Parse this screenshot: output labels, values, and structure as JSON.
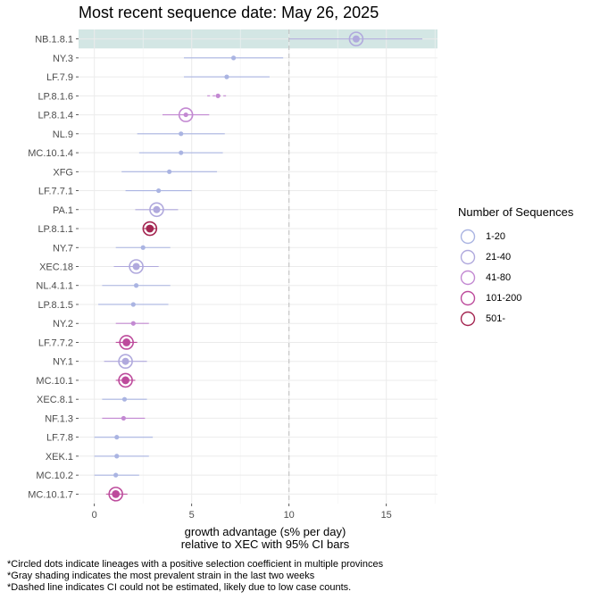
{
  "chart_data": {
    "type": "scatter",
    "title": "Most recent sequence date: May 26, 2025",
    "xlabel_line1": "growth advantage (s% per day)",
    "xlabel_line2": "relative to  XEC  with 95% CI bars",
    "xlim": [
      -1,
      17.6
    ],
    "xticks": [
      0,
      5,
      10,
      15
    ],
    "reference_line": 10,
    "grid": true,
    "legend_position": "right",
    "legend_title": "Number of Sequences",
    "legend": [
      {
        "label": "1-20",
        "color": "#aab4e2"
      },
      {
        "label": "21-40",
        "color": "#b0a9dd"
      },
      {
        "label": "41-80",
        "color": "#c389d2"
      },
      {
        "label": "101-200",
        "color": "#bd4b9c"
      },
      {
        "label": "501-",
        "color": "#a42651"
      }
    ],
    "colors": {
      "1-20": "#aab4e2",
      "21-40": "#b0a9dd",
      "41-80": "#c389d2",
      "101-200": "#bd4b9c",
      "501-": "#a42651"
    },
    "highlight": {
      "lineage": "NB.1.8.1",
      "color": "#d3e6e4",
      "xmin": 10
    },
    "points": [
      {
        "lineage": "NB.1.8.1",
        "x": 13.45,
        "lo": 10.0,
        "hi": 16.85,
        "group": "21-40",
        "circled": true,
        "dashed": false
      },
      {
        "lineage": "NY.3",
        "x": 7.15,
        "lo": 4.6,
        "hi": 9.7,
        "group": "1-20",
        "circled": false,
        "dashed": false
      },
      {
        "lineage": "LF.7.9",
        "x": 6.8,
        "lo": 4.6,
        "hi": 9.0,
        "group": "1-20",
        "circled": false,
        "dashed": false
      },
      {
        "lineage": "LP.8.1.6",
        "x": 6.35,
        "lo": 5.8,
        "hi": 6.9,
        "group": "41-80",
        "circled": false,
        "dashed": true
      },
      {
        "lineage": "LP.8.1.4",
        "x": 4.7,
        "lo": 3.5,
        "hi": 5.9,
        "group": "41-80",
        "circled": true,
        "dashed": false
      },
      {
        "lineage": "NL.9",
        "x": 4.45,
        "lo": 2.2,
        "hi": 6.7,
        "group": "1-20",
        "circled": false,
        "dashed": false
      },
      {
        "lineage": "MC.10.1.4",
        "x": 4.45,
        "lo": 2.3,
        "hi": 6.6,
        "group": "1-20",
        "circled": false,
        "dashed": false
      },
      {
        "lineage": "XFG",
        "x": 3.85,
        "lo": 1.4,
        "hi": 6.3,
        "group": "1-20",
        "circled": false,
        "dashed": false
      },
      {
        "lineage": "LF.7.7.1",
        "x": 3.3,
        "lo": 1.6,
        "hi": 5.0,
        "group": "1-20",
        "circled": false,
        "dashed": false
      },
      {
        "lineage": "PA.1",
        "x": 3.2,
        "lo": 2.1,
        "hi": 4.3,
        "group": "21-40",
        "circled": true,
        "dashed": false
      },
      {
        "lineage": "LP.8.1.1",
        "x": 2.85,
        "lo": 2.5,
        "hi": 3.2,
        "group": "501-",
        "circled": true,
        "dashed": false
      },
      {
        "lineage": "NY.7",
        "x": 2.5,
        "lo": 1.1,
        "hi": 3.9,
        "group": "1-20",
        "circled": false,
        "dashed": false
      },
      {
        "lineage": "XEC.18",
        "x": 2.15,
        "lo": 1.0,
        "hi": 3.3,
        "group": "21-40",
        "circled": true,
        "dashed": false
      },
      {
        "lineage": "NL.4.1.1",
        "x": 2.15,
        "lo": 0.4,
        "hi": 3.9,
        "group": "1-20",
        "circled": false,
        "dashed": false
      },
      {
        "lineage": "LP.8.1.5",
        "x": 2.0,
        "lo": 0.2,
        "hi": 3.8,
        "group": "1-20",
        "circled": false,
        "dashed": false
      },
      {
        "lineage": "NY.2",
        "x": 2.0,
        "lo": 1.1,
        "hi": 2.8,
        "group": "41-80",
        "circled": false,
        "dashed": false
      },
      {
        "lineage": "LF.7.7.2",
        "x": 1.65,
        "lo": 1.1,
        "hi": 2.2,
        "group": "101-200",
        "circled": true,
        "dashed": false
      },
      {
        "lineage": "NY.1",
        "x": 1.6,
        "lo": 0.5,
        "hi": 2.7,
        "group": "21-40",
        "circled": true,
        "dashed": false
      },
      {
        "lineage": "MC.10.1",
        "x": 1.6,
        "lo": 1.1,
        "hi": 2.1,
        "group": "101-200",
        "circled": true,
        "dashed": false
      },
      {
        "lineage": "XEC.8.1",
        "x": 1.55,
        "lo": 0.4,
        "hi": 2.7,
        "group": "1-20",
        "circled": false,
        "dashed": false
      },
      {
        "lineage": "NF.1.3",
        "x": 1.5,
        "lo": 0.4,
        "hi": 2.6,
        "group": "41-80",
        "circled": false,
        "dashed": false
      },
      {
        "lineage": "LF.7.8",
        "x": 1.15,
        "lo": 0.0,
        "hi": 3.0,
        "group": "1-20",
        "circled": false,
        "dashed": false
      },
      {
        "lineage": "XEK.1",
        "x": 1.15,
        "lo": 0.0,
        "hi": 2.8,
        "group": "1-20",
        "circled": false,
        "dashed": false
      },
      {
        "lineage": "MC.10.2",
        "x": 1.1,
        "lo": 0.0,
        "hi": 2.3,
        "group": "1-20",
        "circled": false,
        "dashed": false
      },
      {
        "lineage": "MC.10.1.7",
        "x": 1.1,
        "lo": 0.6,
        "hi": 1.7,
        "group": "101-200",
        "circled": true,
        "dashed": false
      }
    ]
  },
  "footnotes": [
    "*Circled dots indicate lineages with a positive selection coefficient in multiple provinces",
    "*Gray shading indicates the most prevalent strain in the last two weeks",
    "*Dashed line indicates CI could not be estimated, likely due to low case counts."
  ]
}
